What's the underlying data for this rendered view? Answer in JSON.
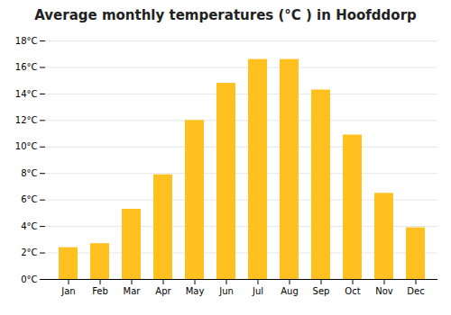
{
  "chart_data": {
    "type": "bar",
    "title": "Average monthly temperatures (°C ) in Hoofddorp",
    "categories": [
      "Jan",
      "Feb",
      "Mar",
      "Apr",
      "May",
      "Jun",
      "Jul",
      "Aug",
      "Sep",
      "Oct",
      "Nov",
      "Dec"
    ],
    "values": [
      2.4,
      2.7,
      5.3,
      7.9,
      12.0,
      14.8,
      16.6,
      16.6,
      14.3,
      10.9,
      6.5,
      3.9
    ],
    "color": "#FFC020",
    "ylim": [
      0,
      18
    ],
    "yticks": [
      {
        "value": 0,
        "label": "0°C"
      },
      {
        "value": 2,
        "label": "2°C"
      },
      {
        "value": 4,
        "label": "4°C"
      },
      {
        "value": 6,
        "label": "6°C"
      },
      {
        "value": 8,
        "label": "8°C"
      },
      {
        "value": 10,
        "label": "10°C"
      },
      {
        "value": 12,
        "label": "12°C"
      },
      {
        "value": 14,
        "label": "14°C"
      },
      {
        "value": 16,
        "label": "16°C"
      },
      {
        "value": 18,
        "label": "18°C"
      }
    ],
    "grid": true
  }
}
